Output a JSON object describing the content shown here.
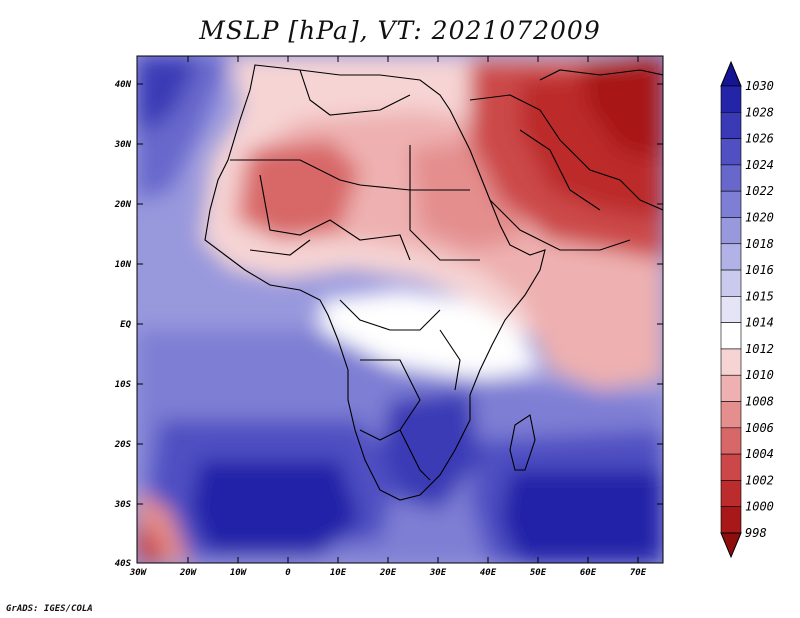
{
  "title": "MSLP [hPa], VT: 2021072009",
  "credit": "GrADS: IGES/COLA",
  "map": {
    "y_ticks": [
      "40N",
      "30N",
      "20N",
      "10N",
      "EQ",
      "10S",
      "20S",
      "30S",
      "40S"
    ],
    "x_ticks": [
      "30W",
      "20W",
      "10W",
      "0",
      "10E",
      "20E",
      "30E",
      "40E",
      "50E",
      "60E",
      "70E"
    ],
    "lat_range": [
      -40,
      45
    ],
    "lon_range": [
      -30,
      75
    ]
  },
  "colorbar": {
    "levels": [
      "1030",
      "1028",
      "1026",
      "1024",
      "1022",
      "1020",
      "1018",
      "1016",
      "1015",
      "1014",
      "1012",
      "1010",
      "1008",
      "1006",
      "1004",
      "1002",
      "1000",
      "998"
    ],
    "colors": [
      "#141494",
      "#2424a8",
      "#3a3ab6",
      "#5050c2",
      "#6868cc",
      "#7e7ed4",
      "#9898dd",
      "#b2b2e6",
      "#cacaee",
      "#e4e4f6",
      "#ffffff",
      "#f6d4d4",
      "#eeb0b0",
      "#e48e8e",
      "#d86868",
      "#cc4848",
      "#bc2c2c",
      "#a81818",
      "#8e0e0e"
    ]
  }
}
